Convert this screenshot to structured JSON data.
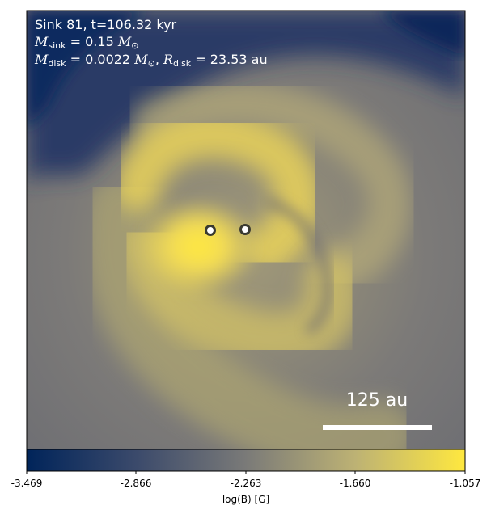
{
  "panel": {
    "title": "Sink 81, t=106.32 kyr",
    "m_sink": "= 0.15",
    "m_disk": "= 0.0022",
    "r_disk": "= 23.53",
    "m_sink_symbol": "M",
    "m_sink_sub": "sink",
    "m_disk_symbol": "M",
    "m_disk_sub": "disk",
    "r_disk_symbol": "R",
    "r_disk_sub": "disk",
    "mass_unit": "M",
    "mass_unit_sub": "⊙",
    "length_unit": "au"
  },
  "scale_bar": {
    "label": "125 au"
  },
  "colorbar": {
    "label": "log(B) [G]",
    "ticks": [
      "-3.469",
      "-2.866",
      "-2.263",
      "-1.660",
      "-1.057"
    ],
    "colors": {
      "low": "#00245a",
      "mid": "#7a7a78",
      "high": "#ffe83f"
    }
  },
  "sinks": [
    "sink-left",
    "sink-right"
  ]
}
